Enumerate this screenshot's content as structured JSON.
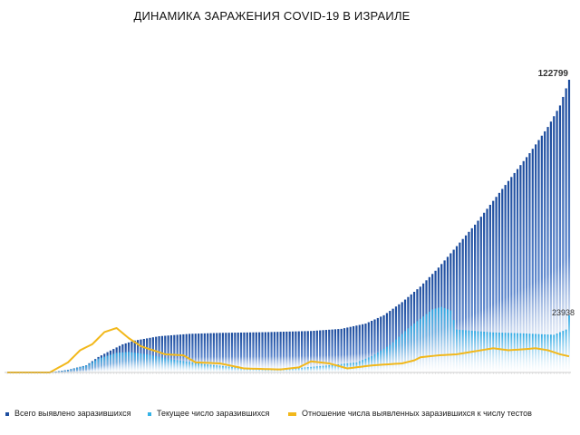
{
  "chart_data": {
    "type": "bar",
    "title": "ДИНАМИКА ЗАРАЖЕНИЯ COVID-19 В ИЗРАИЛЕ",
    "xlabel": "",
    "ylabel": "",
    "grid": false,
    "legend_position": "bottom",
    "annotations": [
      "122799",
      "23938"
    ],
    "x_ticks": "daily dates (tick labels too small to read)",
    "days": 186,
    "series": [
      {
        "name": "Всего выявлено заразившихся",
        "kind": "bar",
        "color": "#1f4fa0",
        "keypoints": [
          [
            0,
            0
          ],
          [
            14,
            0
          ],
          [
            20,
            1100
          ],
          [
            26,
            3000
          ],
          [
            30,
            6500
          ],
          [
            34,
            9200
          ],
          [
            38,
            11800
          ],
          [
            42,
            13400
          ],
          [
            50,
            15200
          ],
          [
            60,
            16200
          ],
          [
            70,
            16600
          ],
          [
            85,
            16900
          ],
          [
            100,
            17400
          ],
          [
            110,
            18300
          ],
          [
            118,
            20500
          ],
          [
            124,
            24000
          ],
          [
            130,
            29500
          ],
          [
            136,
            36000
          ],
          [
            142,
            44000
          ],
          [
            148,
            53000
          ],
          [
            154,
            62000
          ],
          [
            160,
            72000
          ],
          [
            166,
            82000
          ],
          [
            172,
            92000
          ],
          [
            178,
            103000
          ],
          [
            182,
            112000
          ],
          [
            185,
            122799
          ]
        ]
      },
      {
        "name": "Текущее число заразившихся",
        "kind": "bar",
        "color": "#36b3e6",
        "keypoints": [
          [
            0,
            0
          ],
          [
            14,
            0
          ],
          [
            20,
            1000
          ],
          [
            26,
            2900
          ],
          [
            30,
            5800
          ],
          [
            36,
            8200
          ],
          [
            40,
            8600
          ],
          [
            46,
            7600
          ],
          [
            55,
            5300
          ],
          [
            65,
            3500
          ],
          [
            75,
            2200
          ],
          [
            85,
            1500
          ],
          [
            95,
            1800
          ],
          [
            105,
            2900
          ],
          [
            115,
            4200
          ],
          [
            120,
            6800
          ],
          [
            126,
            11500
          ],
          [
            132,
            18500
          ],
          [
            136,
            22500
          ],
          [
            140,
            26500
          ],
          [
            143,
            27500
          ],
          [
            146,
            26000
          ],
          [
            148,
            18000
          ],
          [
            160,
            16800
          ],
          [
            170,
            16400
          ],
          [
            180,
            15800
          ],
          [
            184,
            18000
          ],
          [
            185,
            23938
          ]
        ]
      },
      {
        "name": "Отношение числа выявленных заразившихся к числу тестов",
        "kind": "line",
        "color": "#f2b81b",
        "keypoints": [
          [
            0,
            0
          ],
          [
            14,
            0
          ],
          [
            20,
            0.05
          ],
          [
            24,
            0.11
          ],
          [
            28,
            0.14
          ],
          [
            32,
            0.2
          ],
          [
            36,
            0.22
          ],
          [
            40,
            0.17
          ],
          [
            44,
            0.13
          ],
          [
            48,
            0.11
          ],
          [
            52,
            0.09
          ],
          [
            58,
            0.085
          ],
          [
            62,
            0.05
          ],
          [
            70,
            0.045
          ],
          [
            78,
            0.02
          ],
          [
            90,
            0.015
          ],
          [
            96,
            0.025
          ],
          [
            100,
            0.055
          ],
          [
            106,
            0.045
          ],
          [
            112,
            0.02
          ],
          [
            120,
            0.035
          ],
          [
            130,
            0.045
          ],
          [
            134,
            0.06
          ],
          [
            136,
            0.075
          ],
          [
            142,
            0.085
          ],
          [
            148,
            0.09
          ],
          [
            152,
            0.1
          ],
          [
            156,
            0.11
          ],
          [
            160,
            0.12
          ],
          [
            165,
            0.11
          ],
          [
            170,
            0.115
          ],
          [
            174,
            0.12
          ],
          [
            178,
            0.11
          ],
          [
            182,
            0.09
          ],
          [
            185,
            0.08
          ]
        ]
      }
    ]
  }
}
